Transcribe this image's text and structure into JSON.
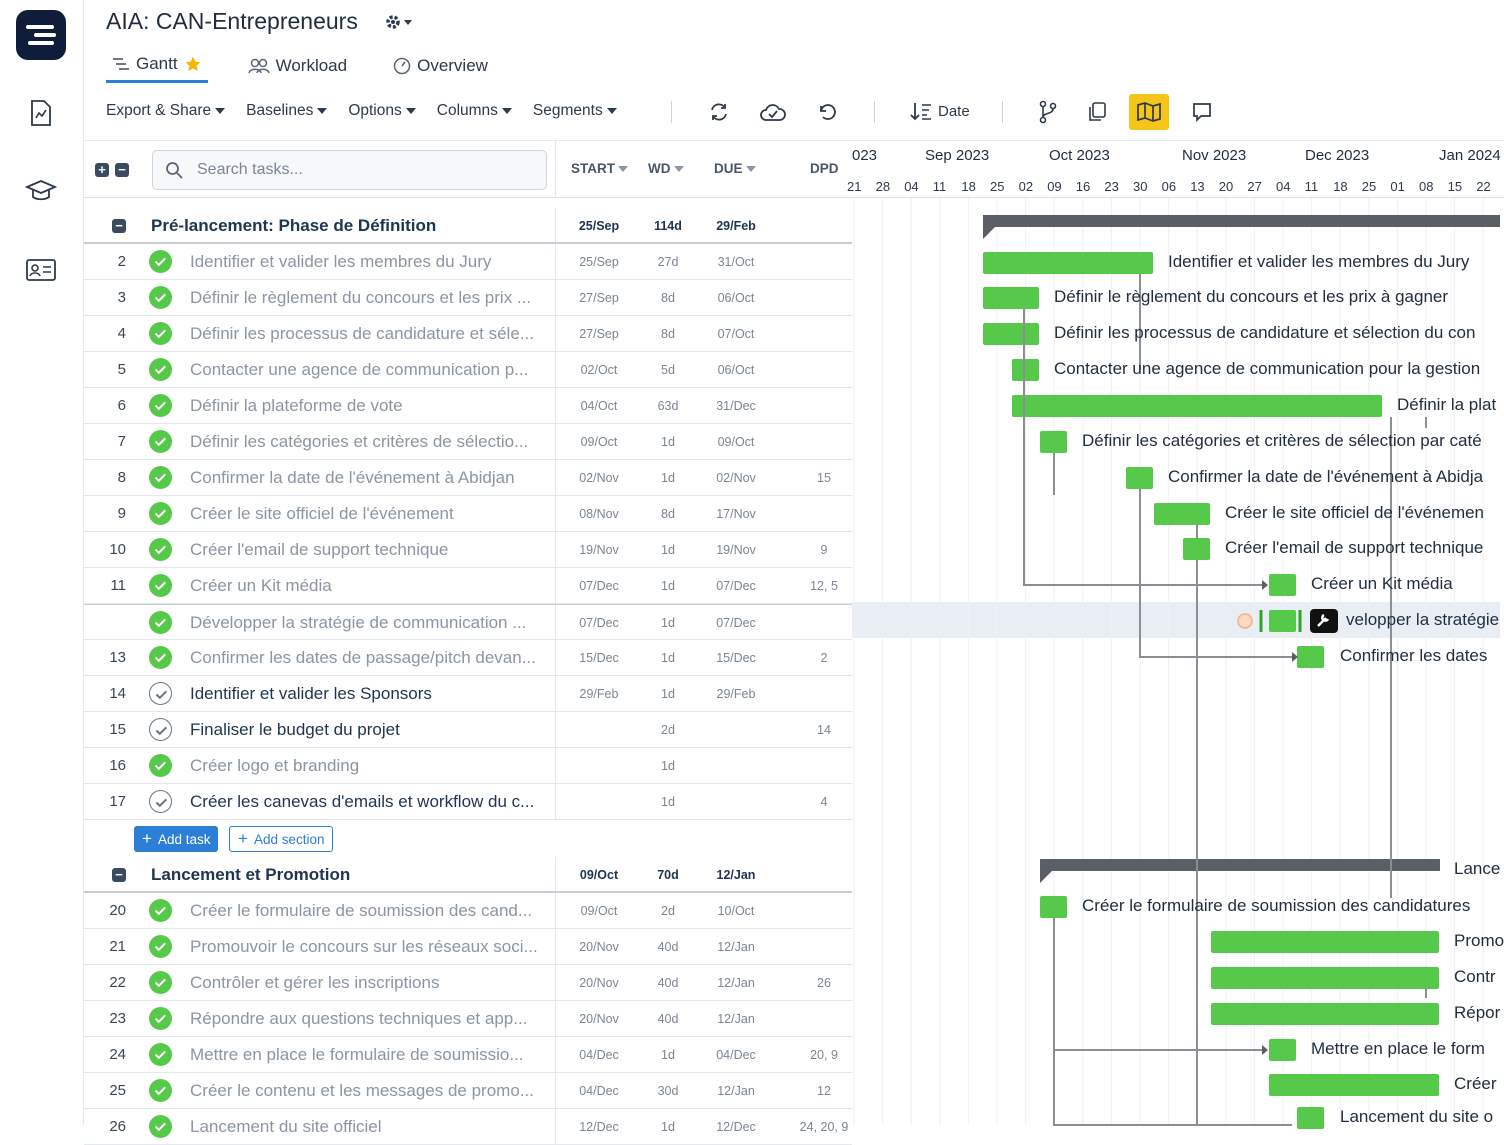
{
  "app": {
    "project_title": "AIA: CAN-Entrepreneurs",
    "colors": {
      "accent": "#2b7fd6",
      "bar": "#57c94a",
      "summary": "#5a5f66",
      "active_tool": "#f5c518"
    }
  },
  "sidebar": {
    "icons": [
      "report-icon",
      "academy-icon",
      "contacts-icon"
    ]
  },
  "tabs": [
    {
      "label": "Gantt",
      "active": true
    },
    {
      "label": "Workload",
      "active": false
    },
    {
      "label": "Overview",
      "active": false
    }
  ],
  "toolbar": {
    "menus": [
      "Export & Share",
      "Baselines",
      "Options",
      "Columns",
      "Segments"
    ],
    "sort_label": "Date"
  },
  "grid": {
    "search_placeholder": "Search tasks...",
    "columns": {
      "start": "START",
      "wd": "WD",
      "due": "DUE",
      "dpd": "DPD"
    }
  },
  "timeline": {
    "months": [
      "023",
      "Sep 2023",
      "Oct 2023",
      "Nov 2023",
      "Dec 2023",
      "Jan 2024"
    ],
    "days": [
      "21",
      "28",
      "04",
      "11",
      "18",
      "25",
      "02",
      "09",
      "16",
      "23",
      "30",
      "06",
      "13",
      "20",
      "27",
      "04",
      "11",
      "18",
      "25",
      "01",
      "08",
      "15",
      "22"
    ]
  },
  "sections": [
    {
      "name": "Pré-lancement: Phase de Définition",
      "start": "25/Sep",
      "wd": "114d",
      "due": "29/Feb",
      "tasks": [
        {
          "num": "2",
          "name": "Identifier et valider les membres du Jury",
          "start": "25/Sep",
          "wd": "27d",
          "due": "31/Oct",
          "dpd": "",
          "done": true
        },
        {
          "num": "3",
          "name": "Définir le règlement du concours et les prix ...",
          "start": "27/Sep",
          "wd": "8d",
          "due": "06/Oct",
          "dpd": "",
          "done": true
        },
        {
          "num": "4",
          "name": "Définir les processus de candidature et séle...",
          "start": "27/Sep",
          "wd": "8d",
          "due": "07/Oct",
          "dpd": "",
          "done": true
        },
        {
          "num": "5",
          "name": "Contacter une agence de communication p...",
          "start": "02/Oct",
          "wd": "5d",
          "due": "06/Oct",
          "dpd": "",
          "done": true
        },
        {
          "num": "6",
          "name": "Définir la plateforme de vote",
          "start": "04/Oct",
          "wd": "63d",
          "due": "31/Dec",
          "dpd": "",
          "done": true
        },
        {
          "num": "7",
          "name": "Définir les catégories et critères de sélectio...",
          "start": "09/Oct",
          "wd": "1d",
          "due": "09/Oct",
          "dpd": "",
          "done": true
        },
        {
          "num": "8",
          "name": "Confirmer la date de l'événement à Abidjan",
          "start": "02/Nov",
          "wd": "1d",
          "due": "02/Nov",
          "dpd": "15",
          "done": true
        },
        {
          "num": "9",
          "name": "Créer le site officiel de l'événement",
          "start": "08/Nov",
          "wd": "8d",
          "due": "17/Nov",
          "dpd": "",
          "done": true
        },
        {
          "num": "10",
          "name": "Créer l'email de support technique",
          "start": "19/Nov",
          "wd": "1d",
          "due": "19/Nov",
          "dpd": "9",
          "done": true
        },
        {
          "num": "11",
          "name": "Créer un Kit média",
          "start": "07/Dec",
          "wd": "1d",
          "due": "07/Dec",
          "dpd": "12, 5",
          "done": true
        },
        {
          "num": "",
          "name": "Développer la stratégie de communication ...",
          "start": "07/Dec",
          "wd": "1d",
          "due": "07/Dec",
          "dpd": "",
          "done": true
        },
        {
          "num": "13",
          "name": "Confirmer les dates de passage/pitch devan...",
          "start": "15/Dec",
          "wd": "1d",
          "due": "15/Dec",
          "dpd": "2",
          "done": true
        },
        {
          "num": "14",
          "name": "Identifier et valider les Sponsors",
          "start": "29/Feb",
          "wd": "1d",
          "due": "29/Feb",
          "dpd": "",
          "done": false
        },
        {
          "num": "15",
          "name": "Finaliser le budget du projet",
          "start": "",
          "wd": "2d",
          "due": "",
          "dpd": "14",
          "done": false
        },
        {
          "num": "16",
          "name": "Créer logo et branding",
          "start": "",
          "wd": "1d",
          "due": "",
          "dpd": "",
          "done": true
        },
        {
          "num": "17",
          "name": "Créer les canevas d'emails et workflow du c...",
          "start": "",
          "wd": "1d",
          "due": "",
          "dpd": "4",
          "done": false
        }
      ]
    },
    {
      "name": "Lancement et Promotion",
      "start": "09/Oct",
      "wd": "70d",
      "due": "12/Jan",
      "tasks": [
        {
          "num": "20",
          "name": "Créer le formulaire de soumission des cand...",
          "start": "09/Oct",
          "wd": "2d",
          "due": "10/Oct",
          "dpd": "",
          "done": true
        },
        {
          "num": "21",
          "name": "Promouvoir le concours sur les réseaux soci...",
          "start": "20/Nov",
          "wd": "40d",
          "due": "12/Jan",
          "dpd": "",
          "done": true
        },
        {
          "num": "22",
          "name": "Contrôler et gérer les inscriptions",
          "start": "20/Nov",
          "wd": "40d",
          "due": "12/Jan",
          "dpd": "26",
          "done": true
        },
        {
          "num": "23",
          "name": "Répondre aux questions techniques et app...",
          "start": "20/Nov",
          "wd": "40d",
          "due": "12/Jan",
          "dpd": "",
          "done": true
        },
        {
          "num": "24",
          "name": "Mettre en place le formulaire de soumissio...",
          "start": "04/Dec",
          "wd": "1d",
          "due": "04/Dec",
          "dpd": "20, 9",
          "done": true
        },
        {
          "num": "25",
          "name": "Créer le contenu et les messages de promo...",
          "start": "04/Dec",
          "wd": "30d",
          "due": "12/Jan",
          "dpd": "12",
          "done": true
        },
        {
          "num": "26",
          "name": "Lancement du site officiel",
          "start": "12/Dec",
          "wd": "1d",
          "due": "12/Dec",
          "dpd": "24, 20, 9",
          "done": true
        }
      ]
    }
  ],
  "actions": {
    "add_task": "Add task",
    "add_section": "Add section"
  },
  "gantt_labels": [
    "Identifier et valider les membres du Jury",
    "Définir le règlement du concours et les prix à gagner",
    "Définir les processus de candidature et sélection du con",
    "Contacter une agence de communication pour la gestion",
    "Définir la plat",
    "Définir les catégories et critères de sélection par caté",
    "Confirmer la date de l'événement à Abidja",
    "Créer le site officiel de l'événemen",
    "Créer l'email de support technique",
    "Créer un Kit média",
    "velopper la stratégie",
    "Confirmer les dates",
    "Lance",
    "Créer le formulaire de soumission des candidatures",
    "Promo",
    "Contr",
    "Répor",
    "Mettre en place le form",
    "Créer",
    "Lancement du site o"
  ]
}
